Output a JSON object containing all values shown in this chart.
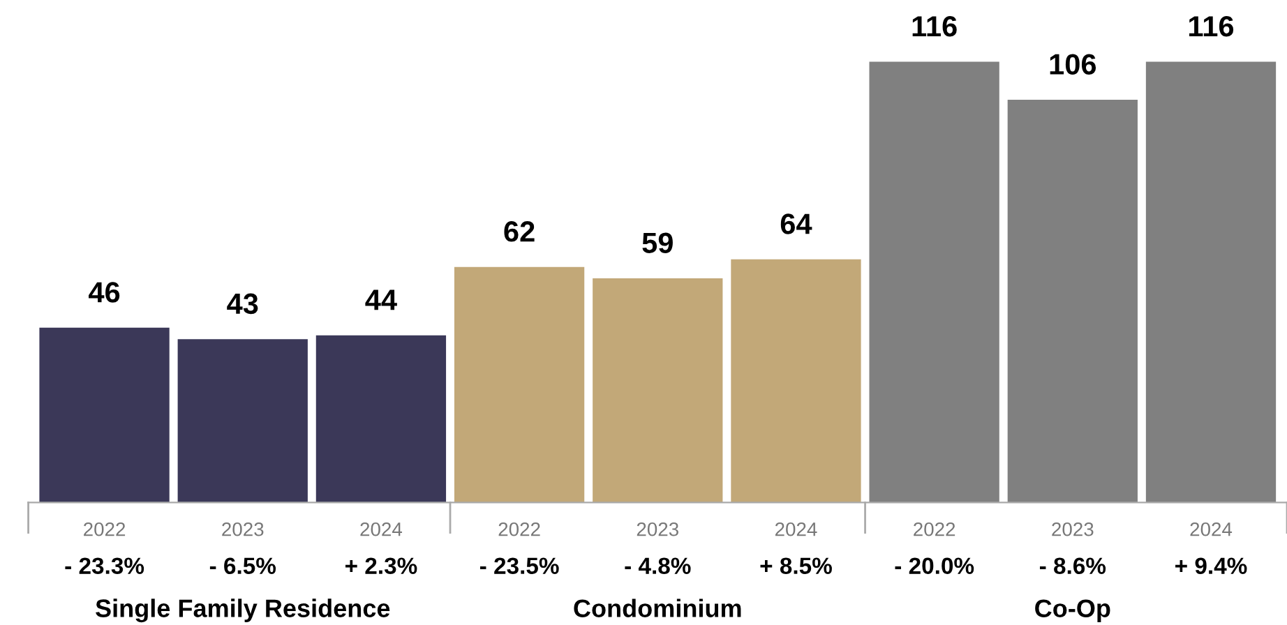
{
  "chart_data": {
    "type": "bar",
    "categories": [
      "2022",
      "2023",
      "2024",
      "2022",
      "2023",
      "2024",
      "2022",
      "2023",
      "2024"
    ],
    "values": [
      46,
      43,
      44,
      62,
      59,
      64,
      116,
      106,
      116
    ],
    "colors": [
      "#3b3858",
      "#3b3858",
      "#3b3858",
      "#c2a878",
      "#c2a878",
      "#c2a878",
      "#808080",
      "#808080",
      "#808080"
    ],
    "data_labels": true,
    "annotations": [
      "- 23.3%",
      "- 6.5%",
      "+ 2.3%",
      "- 23.5%",
      "- 4.8%",
      "+ 8.5%",
      "- 20.0%",
      "- 8.6%",
      "+ 9.4%",
      "Single Family Residence",
      "Condominium",
      "Co-Op"
    ]
  }
}
